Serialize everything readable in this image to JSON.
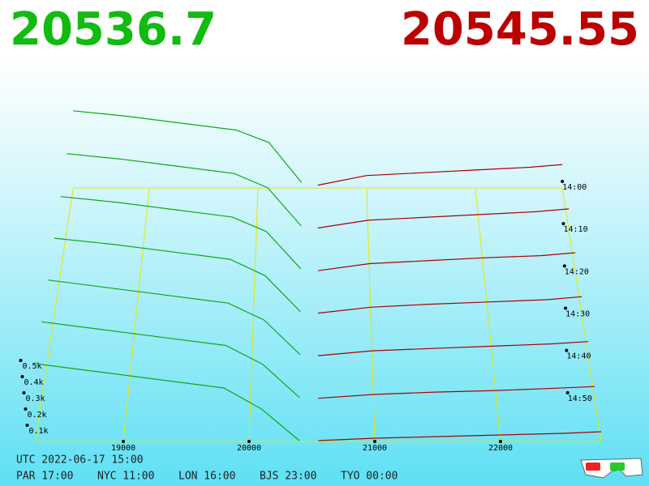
{
  "chart_data": {
    "type": "depth3d",
    "bid_price": 20536.7,
    "ask_price": 20545.55,
    "bid_color": "#11a811",
    "ask_color": "#aa0000",
    "bid_price_color": "#11bb11",
    "ask_price_color": "#bb0000",
    "grid_color": "#e6e600",
    "xlim": [
      18300,
      22800
    ],
    "xticks": [
      19000,
      20000,
      21000,
      22000
    ],
    "zlim": [
      840,
      900
    ],
    "zticks": [
      {
        "value": 840,
        "label": "14:00"
      },
      {
        "value": 850,
        "label": "14:10"
      },
      {
        "value": 860,
        "label": "14:20"
      },
      {
        "value": 870,
        "label": "14:30"
      },
      {
        "value": 880,
        "label": "14:40"
      },
      {
        "value": 890,
        "label": "14:50"
      }
    ],
    "yticks": [
      {
        "value": 100,
        "label": "0.1k"
      },
      {
        "value": 200,
        "label": "0.2k"
      },
      {
        "value": 300,
        "label": "0.3k"
      },
      {
        "value": 400,
        "label": "0.4k"
      },
      {
        "value": 500,
        "label": "0.5k"
      }
    ],
    "bid_prices": [
      18300,
      18800,
      19300,
      19800,
      20100,
      20400
    ],
    "ask_prices": [
      20550,
      21000,
      21500,
      22000,
      22500,
      22800
    ],
    "snapshots": [
      {
        "time": 840,
        "bids": [
          560,
          520,
          470,
          420,
          330,
          40
        ],
        "asks": [
          20,
          90,
          110,
          130,
          150,
          170
        ]
      },
      {
        "time": 850,
        "bids": [
          540,
          500,
          450,
          400,
          300,
          30
        ],
        "asks": [
          15,
          70,
          90,
          110,
          130,
          150
        ]
      },
      {
        "time": 860,
        "bids": [
          520,
          480,
          430,
          380,
          280,
          25
        ],
        "asks": [
          12,
          60,
          80,
          100,
          115,
          135
        ]
      },
      {
        "time": 870,
        "bids": [
          510,
          470,
          420,
          370,
          260,
          20
        ],
        "asks": [
          10,
          50,
          70,
          85,
          100,
          120
        ]
      },
      {
        "time": 880,
        "bids": [
          500,
          450,
          400,
          350,
          240,
          15
        ],
        "asks": [
          8,
          40,
          55,
          70,
          85,
          100
        ]
      },
      {
        "time": 890,
        "bids": [
          490,
          440,
          390,
          340,
          220,
          10
        ],
        "asks": [
          6,
          30,
          45,
          55,
          70,
          80
        ]
      },
      {
        "time": 900,
        "bids": [
          480,
          430,
          380,
          330,
          200,
          5
        ],
        "asks": [
          5,
          20,
          30,
          40,
          50,
          60
        ]
      }
    ],
    "footer": {
      "utc": "UTC 2022-06-17 15:00",
      "zones": [
        "PAR 17:00",
        "NYC 11:00",
        "LON 16:00",
        "BJS 23:00",
        "TYO 00:00"
      ]
    }
  }
}
